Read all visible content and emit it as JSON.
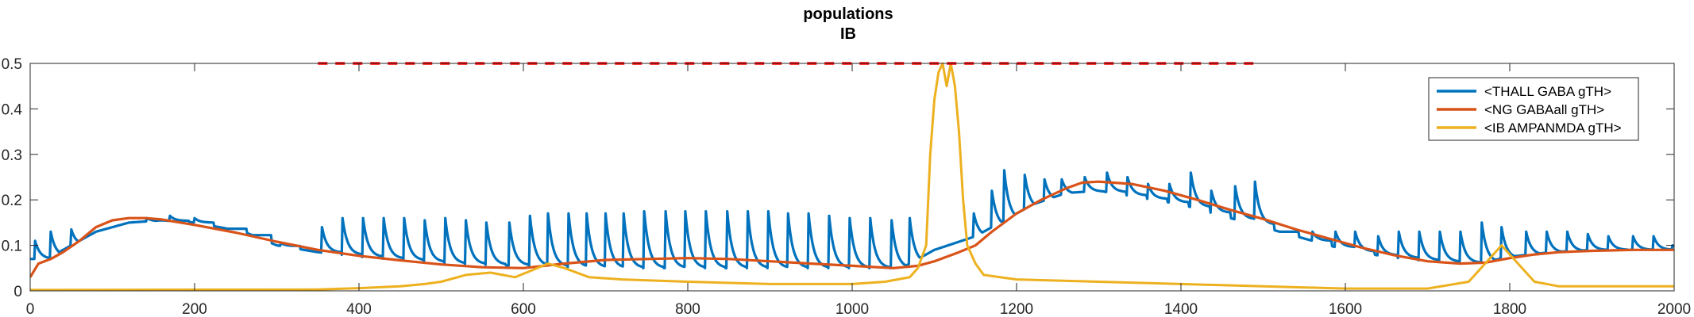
{
  "chart_data": {
    "type": "line",
    "title": "populations",
    "subtitle": "IB",
    "xlabel": "",
    "ylabel": "",
    "xlim": [
      0,
      2000
    ],
    "ylim": [
      0,
      0.5
    ],
    "xticks": [
      "0",
      "200",
      "400",
      "600",
      "800",
      "1000",
      "1200",
      "1400",
      "1600",
      "1800",
      "2000"
    ],
    "yticks": [
      "0",
      "0.1",
      "0.2",
      "0.3",
      "0.4",
      "0.5"
    ],
    "grid": false,
    "box": true,
    "legend_position": "top-right",
    "reference_line": {
      "style": "dashed",
      "color": "#FF0000",
      "y": 0.5,
      "x": [
        350,
        1490
      ]
    },
    "series": [
      {
        "name": "<THALL GABA gTH>",
        "color": "#0072BD",
        "baseline": [
          [
            0,
            0.07
          ],
          [
            20,
            0.07
          ],
          [
            40,
            0.09
          ],
          [
            80,
            0.13
          ],
          [
            120,
            0.15
          ],
          [
            160,
            0.155
          ],
          [
            200,
            0.15
          ],
          [
            260,
            0.13
          ],
          [
            300,
            0.1
          ],
          [
            350,
            0.085
          ],
          [
            400,
            0.075
          ],
          [
            500,
            0.06
          ],
          [
            600,
            0.055
          ],
          [
            700,
            0.05
          ],
          [
            800,
            0.05
          ],
          [
            900,
            0.05
          ],
          [
            1000,
            0.05
          ],
          [
            1060,
            0.05
          ],
          [
            1100,
            0.09
          ],
          [
            1150,
            0.12
          ],
          [
            1180,
            0.15
          ],
          [
            1220,
            0.19
          ],
          [
            1260,
            0.215
          ],
          [
            1300,
            0.22
          ],
          [
            1350,
            0.205
          ],
          [
            1400,
            0.19
          ],
          [
            1450,
            0.165
          ],
          [
            1500,
            0.14
          ],
          [
            1550,
            0.115
          ],
          [
            1600,
            0.09
          ],
          [
            1650,
            0.075
          ],
          [
            1700,
            0.065
          ],
          [
            1760,
            0.06
          ],
          [
            1800,
            0.075
          ],
          [
            1850,
            0.085
          ],
          [
            1900,
            0.09
          ],
          [
            1950,
            0.09
          ],
          [
            2000,
            0.09
          ]
        ],
        "spikes": [
          [
            6,
            0.11
          ],
          [
            25,
            0.13
          ],
          [
            50,
            0.135
          ],
          [
            142,
            0.16
          ],
          [
            170,
            0.165
          ],
          [
            200,
            0.16
          ],
          [
            240,
            0.135
          ],
          [
            270,
            0.12
          ],
          [
            305,
            0.105
          ],
          [
            355,
            0.14
          ],
          [
            380,
            0.16
          ],
          [
            405,
            0.16
          ],
          [
            430,
            0.16
          ],
          [
            455,
            0.16
          ],
          [
            480,
            0.155
          ],
          [
            505,
            0.16
          ],
          [
            530,
            0.155
          ],
          [
            555,
            0.15
          ],
          [
            583,
            0.15
          ],
          [
            608,
            0.165
          ],
          [
            630,
            0.17
          ],
          [
            655,
            0.17
          ],
          [
            677,
            0.17
          ],
          [
            700,
            0.17
          ],
          [
            722,
            0.17
          ],
          [
            747,
            0.175
          ],
          [
            773,
            0.175
          ],
          [
            797,
            0.175
          ],
          [
            822,
            0.175
          ],
          [
            848,
            0.175
          ],
          [
            873,
            0.175
          ],
          [
            898,
            0.175
          ],
          [
            922,
            0.17
          ],
          [
            947,
            0.17
          ],
          [
            972,
            0.165
          ],
          [
            997,
            0.16
          ],
          [
            1022,
            0.16
          ],
          [
            1048,
            0.155
          ],
          [
            1070,
            0.16
          ],
          [
            1148,
            0.17
          ],
          [
            1170,
            0.22
          ],
          [
            1185,
            0.265
          ],
          [
            1210,
            0.255
          ],
          [
            1234,
            0.245
          ],
          [
            1255,
            0.245
          ],
          [
            1283,
            0.25
          ],
          [
            1310,
            0.26
          ],
          [
            1335,
            0.25
          ],
          [
            1360,
            0.235
          ],
          [
            1386,
            0.235
          ],
          [
            1412,
            0.26
          ],
          [
            1437,
            0.22
          ],
          [
            1466,
            0.23
          ],
          [
            1490,
            0.24
          ],
          [
            1520,
            0.13
          ],
          [
            1560,
            0.13
          ],
          [
            1588,
            0.13
          ],
          [
            1612,
            0.13
          ],
          [
            1640,
            0.12
          ],
          [
            1665,
            0.13
          ],
          [
            1690,
            0.13
          ],
          [
            1715,
            0.13
          ],
          [
            1740,
            0.13
          ],
          [
            1766,
            0.15
          ],
          [
            1790,
            0.14
          ],
          [
            1820,
            0.13
          ],
          [
            1845,
            0.13
          ],
          [
            1870,
            0.13
          ],
          [
            1895,
            0.125
          ],
          [
            1920,
            0.12
          ],
          [
            1950,
            0.12
          ],
          [
            1975,
            0.12
          ],
          [
            1998,
            0.1
          ]
        ]
      },
      {
        "name": "<NG GABAall gTH>",
        "color": "#D95319",
        "points": [
          [
            0,
            0.03
          ],
          [
            10,
            0.06
          ],
          [
            25,
            0.07
          ],
          [
            40,
            0.085
          ],
          [
            60,
            0.11
          ],
          [
            80,
            0.14
          ],
          [
            100,
            0.155
          ],
          [
            120,
            0.16
          ],
          [
            140,
            0.16
          ],
          [
            160,
            0.157
          ],
          [
            200,
            0.145
          ],
          [
            250,
            0.128
          ],
          [
            300,
            0.108
          ],
          [
            350,
            0.09
          ],
          [
            400,
            0.077
          ],
          [
            450,
            0.067
          ],
          [
            500,
            0.058
          ],
          [
            550,
            0.052
          ],
          [
            600,
            0.05
          ],
          [
            650,
            0.06
          ],
          [
            700,
            0.068
          ],
          [
            750,
            0.07
          ],
          [
            800,
            0.072
          ],
          [
            850,
            0.07
          ],
          [
            900,
            0.065
          ],
          [
            950,
            0.06
          ],
          [
            1000,
            0.055
          ],
          [
            1050,
            0.05
          ],
          [
            1080,
            0.055
          ],
          [
            1100,
            0.065
          ],
          [
            1130,
            0.085
          ],
          [
            1150,
            0.1
          ],
          [
            1170,
            0.13
          ],
          [
            1200,
            0.17
          ],
          [
            1230,
            0.2
          ],
          [
            1260,
            0.225
          ],
          [
            1280,
            0.238
          ],
          [
            1300,
            0.24
          ],
          [
            1340,
            0.235
          ],
          [
            1380,
            0.22
          ],
          [
            1420,
            0.2
          ],
          [
            1460,
            0.178
          ],
          [
            1500,
            0.158
          ],
          [
            1540,
            0.135
          ],
          [
            1580,
            0.115
          ],
          [
            1620,
            0.095
          ],
          [
            1660,
            0.078
          ],
          [
            1700,
            0.065
          ],
          [
            1740,
            0.06
          ],
          [
            1770,
            0.062
          ],
          [
            1800,
            0.072
          ],
          [
            1830,
            0.08
          ],
          [
            1860,
            0.085
          ],
          [
            1900,
            0.088
          ],
          [
            1950,
            0.09
          ],
          [
            2000,
            0.09
          ]
        ]
      },
      {
        "name": "<IB AMPANMDA gTH>",
        "color": "#EDB120",
        "points": [
          [
            0,
            0.002
          ],
          [
            350,
            0.003
          ],
          [
            400,
            0.006
          ],
          [
            450,
            0.01
          ],
          [
            480,
            0.015
          ],
          [
            500,
            0.02
          ],
          [
            530,
            0.035
          ],
          [
            560,
            0.04
          ],
          [
            590,
            0.03
          ],
          [
            610,
            0.045
          ],
          [
            630,
            0.06
          ],
          [
            650,
            0.05
          ],
          [
            680,
            0.03
          ],
          [
            720,
            0.025
          ],
          [
            800,
            0.02
          ],
          [
            900,
            0.015
          ],
          [
            1000,
            0.015
          ],
          [
            1040,
            0.02
          ],
          [
            1070,
            0.03
          ],
          [
            1080,
            0.05
          ],
          [
            1090,
            0.1
          ],
          [
            1095,
            0.3
          ],
          [
            1100,
            0.42
          ],
          [
            1105,
            0.48
          ],
          [
            1110,
            0.5
          ],
          [
            1115,
            0.45
          ],
          [
            1120,
            0.5
          ],
          [
            1125,
            0.45
          ],
          [
            1130,
            0.35
          ],
          [
            1135,
            0.2
          ],
          [
            1140,
            0.1
          ],
          [
            1150,
            0.06
          ],
          [
            1160,
            0.035
          ],
          [
            1200,
            0.025
          ],
          [
            1300,
            0.02
          ],
          [
            1400,
            0.015
          ],
          [
            1500,
            0.01
          ],
          [
            1600,
            0.005
          ],
          [
            1700,
            0.005
          ],
          [
            1750,
            0.02
          ],
          [
            1770,
            0.06
          ],
          [
            1780,
            0.08
          ],
          [
            1790,
            0.1
          ],
          [
            1800,
            0.08
          ],
          [
            1815,
            0.05
          ],
          [
            1830,
            0.02
          ],
          [
            1860,
            0.01
          ],
          [
            1950,
            0.01
          ],
          [
            2000,
            0.01
          ]
        ]
      }
    ]
  }
}
